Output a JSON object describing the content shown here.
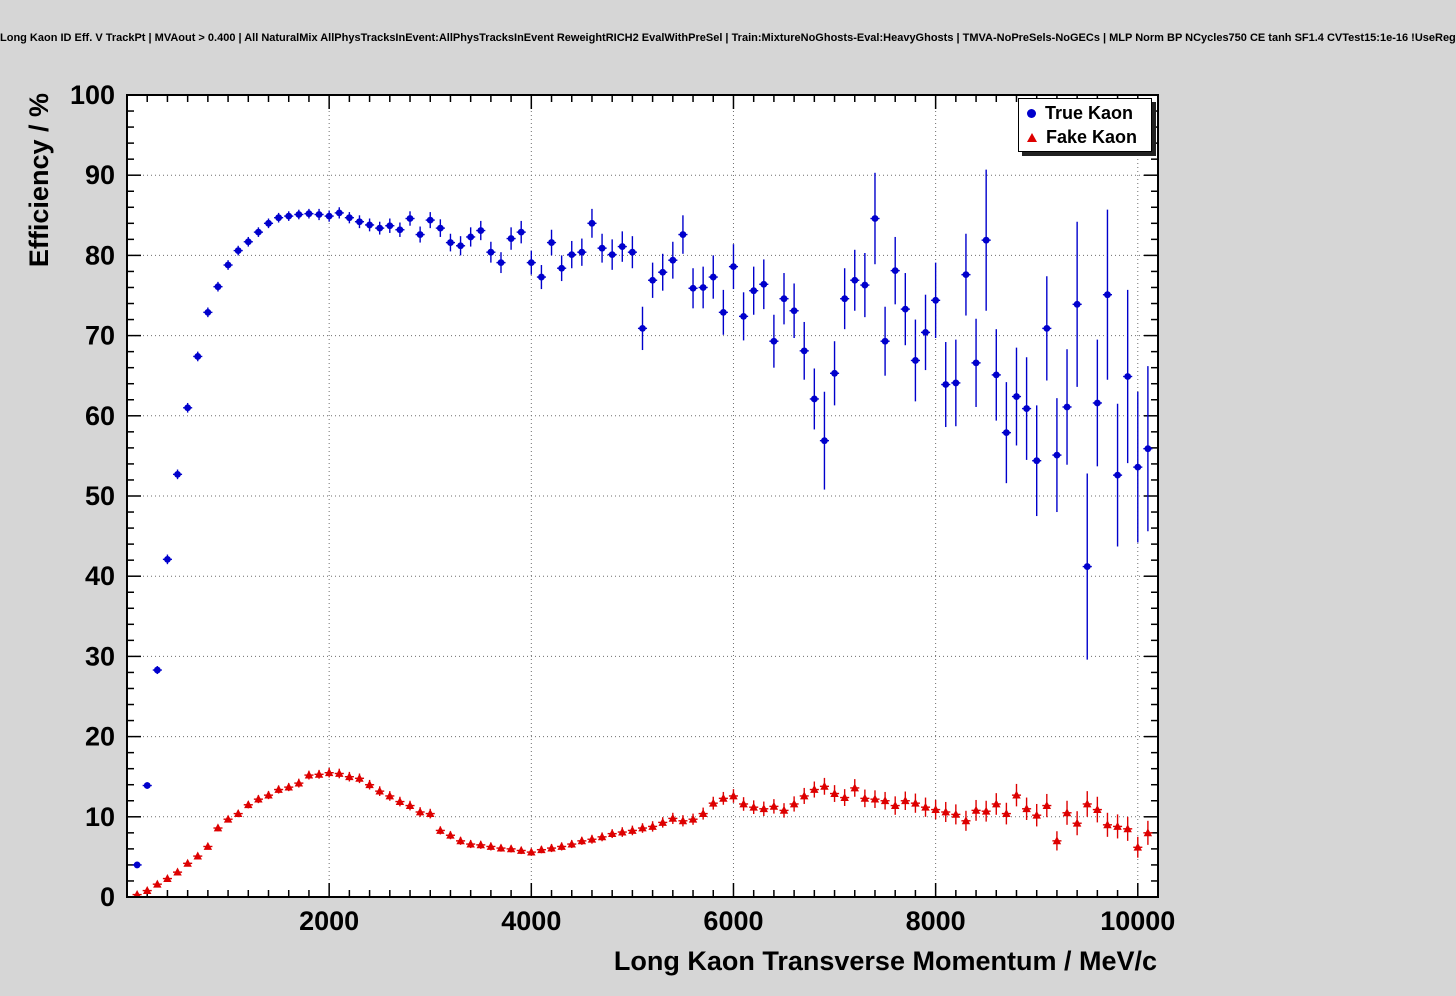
{
  "header": {
    "title": "Long Kaon ID Eff. V TrackPt | MVAout > 0.400 | All NaturalMix AllPhysTracksInEvent:AllPhysTracksInEvent ReweightRICH2 EvalWithPreSel | Train:MixtureNoGhosts-Eval:HeavyGhosts | TMVA-NoPreSels-NoGECs | MLP Norm BP NCycles750 CE tanh SF1.4 CVTest15:1e-16 !UseReg"
  },
  "colors": {
    "canvas_bg": "#d6d6d6",
    "frame_bg": "#ffffff",
    "grid": "#6e6e6e",
    "axis": "#000000",
    "legend_bg": "#ffffff",
    "legend_border": "#000000",
    "legend_shadow": "#222222"
  },
  "chart_data": {
    "type": "scatter",
    "title": "Long Kaon ID Eff. V TrackPt | MVAout > 0.400 | All NaturalMix AllPhysTracksInEvent:AllPhysTracksInEvent ReweightRICH2 EvalWithPreSel | Train:MixtureNoGhosts-Eval:HeavyGhosts | TMVA-NoPreSels-NoGECs | MLP Norm BP NCycles750 CE tanh SF1.4 CVTest15:1e-16 !UseReg",
    "xlabel": "Long Kaon Transverse Momentum / MeV/c",
    "ylabel": "Efficiency / %",
    "xlim": [
      0,
      10200
    ],
    "ylim": [
      0,
      100
    ],
    "x_ticks": [
      2000,
      4000,
      6000,
      8000,
      10000
    ],
    "y_ticks": [
      0,
      10,
      20,
      30,
      40,
      50,
      60,
      70,
      80,
      90,
      100
    ],
    "x_major_step": 2000,
    "x_minor_step": 200,
    "y_major_step": 10,
    "y_minor_step": 2,
    "grid": "dotted",
    "legend_position": "top-right",
    "series": [
      {
        "name": "True Kaon",
        "color": "#0000cc",
        "marker": "circle",
        "bin_half_width": 45,
        "points": [
          [
            100,
            4.0,
            0.3
          ],
          [
            200,
            13.9,
            0.4
          ],
          [
            300,
            28.3,
            0.5
          ],
          [
            400,
            42.1,
            0.6
          ],
          [
            500,
            52.7,
            0.6
          ],
          [
            600,
            61.0,
            0.6
          ],
          [
            700,
            67.4,
            0.6
          ],
          [
            800,
            72.9,
            0.6
          ],
          [
            900,
            76.1,
            0.6
          ],
          [
            1000,
            78.8,
            0.6
          ],
          [
            1100,
            80.6,
            0.6
          ],
          [
            1200,
            81.7,
            0.6
          ],
          [
            1300,
            82.9,
            0.6
          ],
          [
            1400,
            84.0,
            0.6
          ],
          [
            1500,
            84.7,
            0.6
          ],
          [
            1600,
            84.9,
            0.6
          ],
          [
            1700,
            85.1,
            0.6
          ],
          [
            1800,
            85.2,
            0.6
          ],
          [
            1900,
            85.1,
            0.7
          ],
          [
            2000,
            84.9,
            0.7
          ],
          [
            2100,
            85.3,
            0.7
          ],
          [
            2200,
            84.7,
            0.7
          ],
          [
            2300,
            84.2,
            0.8
          ],
          [
            2400,
            83.8,
            0.8
          ],
          [
            2500,
            83.4,
            0.8
          ],
          [
            2600,
            83.7,
            0.9
          ],
          [
            2700,
            83.2,
            0.9
          ],
          [
            2800,
            84.6,
            0.9
          ],
          [
            2900,
            82.6,
            1.0
          ],
          [
            3000,
            84.4,
            1.0
          ],
          [
            3100,
            83.4,
            1.1
          ],
          [
            3200,
            81.6,
            1.1
          ],
          [
            3300,
            81.2,
            1.2
          ],
          [
            3400,
            82.3,
            1.2
          ],
          [
            3500,
            83.1,
            1.2
          ],
          [
            3600,
            80.4,
            1.3
          ],
          [
            3700,
            79.1,
            1.3
          ],
          [
            3800,
            82.1,
            1.4
          ],
          [
            3900,
            82.9,
            1.4
          ],
          [
            4000,
            79.1,
            1.5
          ],
          [
            4100,
            77.3,
            1.5
          ],
          [
            4200,
            81.6,
            1.6
          ],
          [
            4300,
            78.4,
            1.6
          ],
          [
            4400,
            80.1,
            1.7
          ],
          [
            4500,
            80.4,
            1.7
          ],
          [
            4600,
            84.0,
            1.8
          ],
          [
            4700,
            80.9,
            1.8
          ],
          [
            4800,
            80.1,
            1.9
          ],
          [
            4900,
            81.1,
            1.9
          ],
          [
            5000,
            80.4,
            2.0
          ],
          [
            5100,
            70.9,
            2.7
          ],
          [
            5200,
            76.9,
            2.2
          ],
          [
            5300,
            77.9,
            2.3
          ],
          [
            5400,
            79.4,
            2.3
          ],
          [
            5500,
            82.6,
            2.4
          ],
          [
            5600,
            75.9,
            2.5
          ],
          [
            5700,
            76.0,
            2.6
          ],
          [
            5800,
            77.3,
            2.7
          ],
          [
            5900,
            72.9,
            2.8
          ],
          [
            6000,
            78.6,
            2.8
          ],
          [
            6100,
            72.4,
            3.0
          ],
          [
            6200,
            75.6,
            3.0
          ],
          [
            6300,
            76.4,
            3.1
          ],
          [
            6400,
            69.3,
            3.3
          ],
          [
            6500,
            74.6,
            3.2
          ],
          [
            6600,
            73.1,
            3.4
          ],
          [
            6700,
            68.1,
            3.6
          ],
          [
            6800,
            62.1,
            3.8
          ],
          [
            6900,
            56.9,
            6.1
          ],
          [
            7000,
            65.3,
            4.0
          ],
          [
            7100,
            74.6,
            3.8
          ],
          [
            7200,
            76.9,
            3.8
          ],
          [
            7300,
            76.3,
            4.0
          ],
          [
            7400,
            84.6,
            5.7
          ],
          [
            7500,
            69.3,
            4.3
          ],
          [
            7600,
            78.1,
            4.2
          ],
          [
            7700,
            73.3,
            4.5
          ],
          [
            7800,
            66.9,
            5.1
          ],
          [
            7900,
            70.4,
            4.7
          ],
          [
            8000,
            74.4,
            4.7
          ],
          [
            8100,
            63.9,
            5.3
          ],
          [
            8200,
            64.1,
            5.4
          ],
          [
            8300,
            77.6,
            5.1
          ],
          [
            8400,
            66.6,
            5.5
          ],
          [
            8500,
            81.9,
            8.8
          ],
          [
            8600,
            65.1,
            5.7
          ],
          [
            8700,
            57.9,
            6.3
          ],
          [
            8800,
            62.4,
            6.1
          ],
          [
            8900,
            60.9,
            6.4
          ],
          [
            9000,
            54.4,
            6.9
          ],
          [
            9100,
            70.9,
            6.5
          ],
          [
            9200,
            55.1,
            7.1
          ],
          [
            9300,
            61.1,
            7.2
          ],
          [
            9400,
            73.9,
            10.3
          ],
          [
            9500,
            41.2,
            11.6
          ],
          [
            9600,
            61.6,
            7.9
          ],
          [
            9700,
            75.1,
            10.6
          ],
          [
            9800,
            52.6,
            8.9
          ],
          [
            9900,
            64.9,
            10.8
          ],
          [
            10000,
            53.6,
            9.4
          ],
          [
            10100,
            55.9,
            10.3
          ]
        ]
      },
      {
        "name": "Fake Kaon",
        "color": "#dd0000",
        "marker": "triangle",
        "bin_half_width": 45,
        "points": [
          [
            100,
            0.3,
            0.1
          ],
          [
            200,
            0.8,
            0.15
          ],
          [
            300,
            1.6,
            0.2
          ],
          [
            400,
            2.3,
            0.2
          ],
          [
            500,
            3.1,
            0.25
          ],
          [
            600,
            4.2,
            0.3
          ],
          [
            700,
            5.1,
            0.3
          ],
          [
            800,
            6.3,
            0.35
          ],
          [
            900,
            8.6,
            0.4
          ],
          [
            1000,
            9.7,
            0.4
          ],
          [
            1100,
            10.4,
            0.45
          ],
          [
            1200,
            11.5,
            0.45
          ],
          [
            1300,
            12.2,
            0.5
          ],
          [
            1400,
            12.7,
            0.5
          ],
          [
            1500,
            13.4,
            0.5
          ],
          [
            1600,
            13.7,
            0.5
          ],
          [
            1700,
            14.2,
            0.55
          ],
          [
            1800,
            15.2,
            0.55
          ],
          [
            1900,
            15.3,
            0.55
          ],
          [
            2000,
            15.5,
            0.6
          ],
          [
            2100,
            15.4,
            0.6
          ],
          [
            2200,
            15.0,
            0.6
          ],
          [
            2300,
            14.8,
            0.6
          ],
          [
            2400,
            14.0,
            0.6
          ],
          [
            2500,
            13.2,
            0.6
          ],
          [
            2600,
            12.6,
            0.6
          ],
          [
            2700,
            11.9,
            0.6
          ],
          [
            2800,
            11.4,
            0.6
          ],
          [
            2900,
            10.6,
            0.6
          ],
          [
            3000,
            10.4,
            0.6
          ],
          [
            3100,
            8.3,
            0.5
          ],
          [
            3200,
            7.7,
            0.5
          ],
          [
            3300,
            7.0,
            0.5
          ],
          [
            3400,
            6.6,
            0.5
          ],
          [
            3500,
            6.5,
            0.5
          ],
          [
            3600,
            6.3,
            0.5
          ],
          [
            3700,
            6.1,
            0.45
          ],
          [
            3800,
            6.0,
            0.45
          ],
          [
            3900,
            5.8,
            0.45
          ],
          [
            4000,
            5.6,
            0.45
          ],
          [
            4100,
            5.9,
            0.45
          ],
          [
            4200,
            6.1,
            0.5
          ],
          [
            4300,
            6.3,
            0.5
          ],
          [
            4400,
            6.6,
            0.5
          ],
          [
            4500,
            7.0,
            0.5
          ],
          [
            4600,
            7.2,
            0.55
          ],
          [
            4700,
            7.5,
            0.55
          ],
          [
            4800,
            7.9,
            0.55
          ],
          [
            4900,
            8.1,
            0.6
          ],
          [
            5000,
            8.3,
            0.6
          ],
          [
            5100,
            8.6,
            0.6
          ],
          [
            5200,
            8.8,
            0.65
          ],
          [
            5300,
            9.3,
            0.65
          ],
          [
            5400,
            9.8,
            0.7
          ],
          [
            5500,
            9.5,
            0.7
          ],
          [
            5600,
            9.7,
            0.7
          ],
          [
            5700,
            10.4,
            0.75
          ],
          [
            5800,
            11.7,
            0.8
          ],
          [
            5900,
            12.3,
            0.8
          ],
          [
            6000,
            12.6,
            0.85
          ],
          [
            6100,
            11.6,
            0.85
          ],
          [
            6200,
            11.2,
            0.85
          ],
          [
            6300,
            11.0,
            0.9
          ],
          [
            6400,
            11.3,
            0.9
          ],
          [
            6500,
            10.8,
            0.9
          ],
          [
            6600,
            11.6,
            0.95
          ],
          [
            6700,
            12.6,
            1.0
          ],
          [
            6800,
            13.4,
            1.0
          ],
          [
            6900,
            13.8,
            1.05
          ],
          [
            7000,
            12.9,
            1.05
          ],
          [
            7100,
            12.4,
            1.05
          ],
          [
            7200,
            13.6,
            1.1
          ],
          [
            7300,
            12.3,
            1.1
          ],
          [
            7400,
            12.2,
            1.1
          ],
          [
            7500,
            12.0,
            1.1
          ],
          [
            7600,
            11.4,
            1.15
          ],
          [
            7700,
            12.0,
            1.15
          ],
          [
            7800,
            11.7,
            1.2
          ],
          [
            7900,
            11.2,
            1.2
          ],
          [
            8000,
            10.9,
            1.2
          ],
          [
            8100,
            10.6,
            1.25
          ],
          [
            8200,
            10.3,
            1.25
          ],
          [
            8300,
            9.5,
            1.25
          ],
          [
            8400,
            10.8,
            1.3
          ],
          [
            8500,
            10.7,
            1.3
          ],
          [
            8600,
            11.6,
            1.35
          ],
          [
            8700,
            10.4,
            1.35
          ],
          [
            8800,
            12.7,
            1.4
          ],
          [
            8900,
            11.0,
            1.4
          ],
          [
            9000,
            10.2,
            1.4
          ],
          [
            9100,
            11.4,
            1.45
          ],
          [
            9200,
            7.0,
            1.2
          ],
          [
            9300,
            10.5,
            1.5
          ],
          [
            9400,
            9.2,
            1.5
          ],
          [
            9500,
            11.6,
            1.6
          ],
          [
            9600,
            10.9,
            1.6
          ],
          [
            9700,
            9.0,
            1.5
          ],
          [
            9800,
            8.8,
            1.5
          ],
          [
            9900,
            8.5,
            1.5
          ],
          [
            10000,
            6.2,
            1.3
          ],
          [
            10100,
            8.0,
            1.5
          ]
        ]
      }
    ]
  }
}
